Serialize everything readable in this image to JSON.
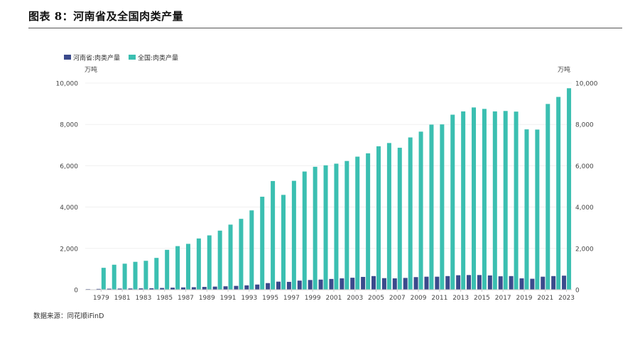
{
  "figure": {
    "title": "图表 8：河南省及全国肉类产量",
    "source": "数据来源：同花顺iFinD"
  },
  "colors": {
    "henan": "#3b4a8c",
    "national": "#3bbfb1",
    "axis": "#cccccc",
    "tick_text": "#444444"
  },
  "chart_data": {
    "type": "bar",
    "title": "",
    "xlabel": "",
    "ylabel_left": "万吨",
    "ylabel_right": "万吨",
    "ylim": [
      0,
      10000
    ],
    "yticks": [
      0,
      2000,
      4000,
      6000,
      8000,
      10000
    ],
    "ytick_labels": [
      "0",
      "2,000",
      "4,000",
      "6,000",
      "8,000",
      "10,000"
    ],
    "legend_position": "top-left",
    "grid": true,
    "categories": [
      "1978",
      "1979",
      "1980",
      "1981",
      "1982",
      "1983",
      "1984",
      "1985",
      "1986",
      "1987",
      "1988",
      "1989",
      "1990",
      "1991",
      "1992",
      "1993",
      "1994",
      "1995",
      "1996",
      "1997",
      "1998",
      "1999",
      "2000",
      "2001",
      "2002",
      "2003",
      "2004",
      "2005",
      "2006",
      "2007",
      "2008",
      "2009",
      "2010",
      "2011",
      "2012",
      "2013",
      "2014",
      "2015",
      "2016",
      "2017",
      "2018",
      "2019",
      "2020",
      "2021",
      "2022",
      "2023"
    ],
    "xtick_labels": [
      "1979",
      "1981",
      "1983",
      "1985",
      "1987",
      "1989",
      "1991",
      "1993",
      "1995",
      "1997",
      "1999",
      "2001",
      "2003",
      "2005",
      "2007",
      "2009",
      "2011",
      "2013",
      "2015",
      "2017",
      "2019",
      "2021",
      "2023"
    ],
    "series": [
      {
        "name": "河南省:肉类产量",
        "color_key": "henan",
        "values": [
          30,
          40,
          50,
          55,
          60,
          65,
          70,
          85,
          100,
          110,
          120,
          135,
          150,
          165,
          185,
          210,
          250,
          320,
          390,
          380,
          440,
          470,
          490,
          520,
          550,
          580,
          620,
          660,
          560,
          550,
          570,
          610,
          630,
          630,
          660,
          700,
          710,
          710,
          690,
          650,
          660,
          550,
          530,
          630,
          660,
          680
        ]
      },
      {
        "name": "全国:肉类产量",
        "color_key": "national",
        "values": [
          0,
          1060,
          1210,
          1260,
          1350,
          1400,
          1540,
          1930,
          2110,
          2220,
          2480,
          2630,
          2860,
          3150,
          3430,
          3840,
          4500,
          5260,
          4590,
          5270,
          5720,
          5950,
          6020,
          6100,
          6230,
          6440,
          6600,
          6940,
          7100,
          6870,
          7370,
          7650,
          7990,
          8000,
          8470,
          8630,
          8820,
          8750,
          8630,
          8650,
          8620,
          7760,
          7750,
          8990,
          9330,
          9750
        ]
      }
    ]
  }
}
